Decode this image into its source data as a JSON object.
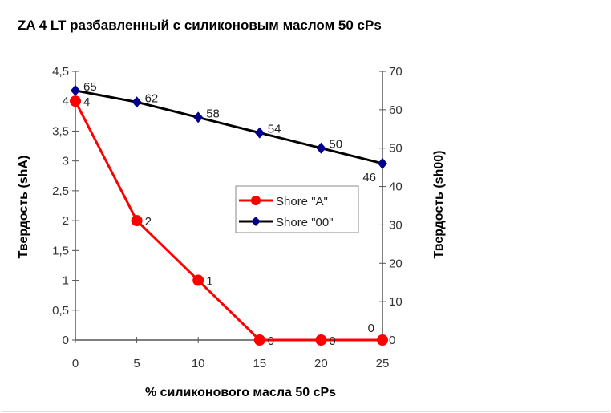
{
  "chart_data": {
    "type": "line",
    "title": "ZA 4 LT разбавленный с силиконовым маслом 50 cPs",
    "xlabel": "% силиконового масла 50 cPs",
    "ylabel": "Твердость (shA)",
    "y2label": "Твердость (sh00)",
    "x": [
      0,
      5,
      10,
      15,
      20,
      25
    ],
    "xlim": [
      0,
      25
    ],
    "xticks": [
      "0",
      "5",
      "10",
      "15",
      "20",
      "25"
    ],
    "ylim": [
      0,
      4.5
    ],
    "yticks": [
      "0",
      "0,5",
      "1",
      "1,5",
      "2",
      "2,5",
      "3",
      "3,5",
      "4",
      "4,5"
    ],
    "y2lim": [
      0,
      70
    ],
    "y2ticks": [
      "0",
      "10",
      "20",
      "30",
      "40",
      "50",
      "60",
      "70"
    ],
    "grid": false,
    "legend_position": "center-right",
    "series": [
      {
        "name": "Shore \"A\"",
        "axis": "left",
        "color": "#ff0000",
        "marker": "circle",
        "values": [
          4,
          2,
          1,
          0,
          0,
          0
        ],
        "labels": [
          "4",
          "2",
          "1",
          "0",
          "0",
          "0"
        ]
      },
      {
        "name": "Shore \"00\"",
        "axis": "right",
        "color": "#000000",
        "marker_color": "#00008b",
        "marker": "diamond",
        "values": [
          65,
          62,
          58,
          54,
          50,
          46
        ],
        "labels": [
          "65",
          "62",
          "58",
          "54",
          "50",
          "46"
        ]
      }
    ]
  }
}
